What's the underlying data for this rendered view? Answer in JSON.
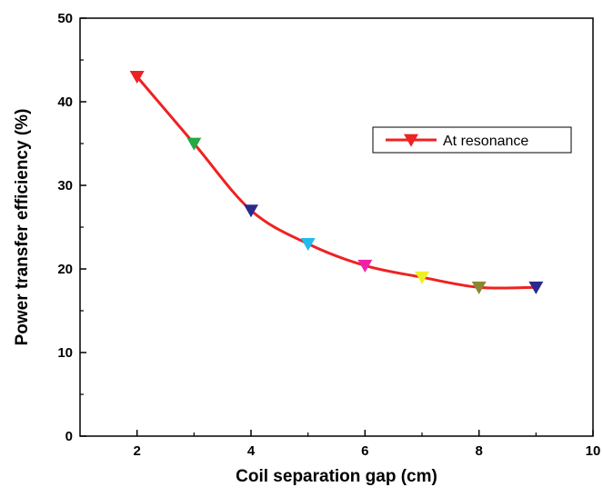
{
  "chart_data": {
    "type": "line",
    "title": "",
    "xlabel": "Coil separation gap (cm)",
    "ylabel": "Power transfer efficiency (%)",
    "xlim": [
      1,
      10
    ],
    "ylim": [
      0,
      50
    ],
    "xticks": [
      2,
      4,
      6,
      8,
      10
    ],
    "yticks": [
      0,
      10,
      20,
      30,
      40,
      50
    ],
    "grid": false,
    "legend_position": "top-right",
    "series": [
      {
        "name": "At resonance",
        "line_color": "#ee2222",
        "marker": "down-triangle",
        "x": [
          2,
          3,
          4,
          5,
          6,
          7,
          8,
          9
        ],
        "y": [
          43,
          35,
          27,
          23,
          20.4,
          19,
          17.8,
          17.8
        ],
        "marker_colors": [
          "#ee2222",
          "#22aa44",
          "#2a2a8c",
          "#22bbee",
          "#ee22aa",
          "#f0ee22",
          "#888833",
          "#2a2a8c"
        ]
      }
    ]
  }
}
